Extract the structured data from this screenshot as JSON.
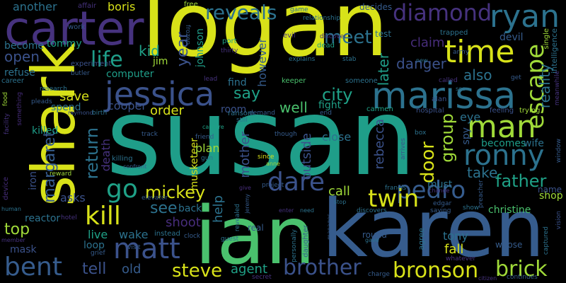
{
  "words": {
    "susan": "susan",
    "logan": "logan",
    "karen": "karen",
    "ian": "ian",
    "shark": "shark",
    "carter": "carter",
    "marissa": "marissa",
    "jessica": "jessica",
    "matt": "matt",
    "time": "time",
    "escape": "escape",
    "ryan": "ryan",
    "diamond": "diamond",
    "man": "man",
    "ronny": "ronny",
    "pedro": "pedro",
    "bronson": "bronson",
    "brick": "brick",
    "twin": "twin",
    "bent": "bent",
    "kill": "kill",
    "dare": "dare",
    "go": "go",
    "brother": "brother",
    "steve": "steve",
    "mickey": "mickey",
    "father": "father",
    "door": "door",
    "group": "group",
    "city": "city",
    "life": "life",
    "return": "return",
    "margaret": "margaret",
    "reveals": "reveals",
    "meet": "meet",
    "another": "another",
    "boris": "boris",
    "open": "open",
    "kid": "kid",
    "jim": "jim",
    "year": "year",
    "johnson": "johnson",
    "say": "say",
    "well": "well",
    "fight": "fight",
    "later": "later",
    "danger": "danger",
    "also": "also",
    "reality": "reality",
    "order": "order",
    "cooper": "cooper",
    "room": "room",
    "find": "find",
    "however": "however",
    "rebecca": "rebecca",
    "outside": "outside",
    "mother": "mother",
    "musketeer": "musketeer",
    "death": "death",
    "killed": "killed",
    "iron": "iron",
    "see": "see",
    "help": "help",
    "shoot": "shoot",
    "plan": "plan",
    "close": "close",
    "call": "call",
    "take": "take",
    "must": "must",
    "shop": "shop",
    "christine": "christine",
    "top": "top",
    "live": "live",
    "wake": "wake",
    "tell": "tell",
    "old": "old",
    "agent": "agent",
    "fall": "fall",
    "tony": "tony",
    "save": "save",
    "spend": "spend",
    "mask": "mask",
    "loop": "loop",
    "tommy": "tommy",
    "become": "become",
    "refuse": "refuse",
    "computer": "computer",
    "claim": "claim",
    "devil": "devil",
    "eye": "eye",
    "spy": "spy",
    "becomes": "becomes",
    "wife": "wife",
    "name": "name",
    "back": "back",
    "asks": "asks",
    "reactor": "reactor",
    "real": "real",
    "round": "round",
    "whose": "whose",
    "work": "work",
    "affair": "affair",
    "free": "free",
    "evil": "evil",
    "test": "test",
    "decides": "decides",
    "frozen": "frozen",
    "port": "port",
    "dead": "dead",
    "trapped": "trapped",
    "army": "army",
    "single": "single",
    "intelligence": "intelligence",
    "experiment": "experiment",
    "butler": "butler",
    "pleads": "pleads",
    "research": "research",
    "career": "career",
    "food": "food",
    "raymond": "raymond",
    "birth": "birth",
    "ransom": "ransom",
    "demand": "demand",
    "still": "still",
    "end": "end",
    "keeper": "keeper",
    "someone": "someone",
    "carmen": "carmen",
    "hospital": "hospital",
    "feeling": "feeling",
    "trying": "trying",
    "alan": "alan",
    "soo": "soo",
    "track": "track",
    "friend": "friend",
    "capture": "capture",
    "though": "though",
    "since": "since",
    "anne": "anne",
    "box": "box",
    "arrives": "arrives",
    "killing": "killing",
    "confront": "confront",
    "gun": "gun",
    "reward": "reward",
    "elevator": "elevator",
    "project": "project",
    "francis": "francis",
    "edgar": "edgar",
    "saying": "saying",
    "show": "show",
    "preacher": "preacher",
    "change": "change",
    "device": "device",
    "human": "human",
    "hotel": "hotel",
    "member": "member",
    "visit": "visit",
    "grief": "grief",
    "instead": "instead",
    "clock": "clock",
    "guest": "guest",
    "revealed": "revealed",
    "personally": "personally",
    "daughter": "daughter",
    "need": "need",
    "stop": "stop",
    "discovers": "discovers",
    "manages": "manages",
    "gave": "gave",
    "charge": "charge",
    "secret": "secret",
    "continues": "continues",
    "citizen": "citizen",
    "whatever": "whatever",
    "captured": "captured",
    "vision": "vision",
    "window": "window",
    "game": "game",
    "relationship": "relationship",
    "discover": "discover",
    "explains": "explains",
    "stab": "stab",
    "thirty": "thirty",
    "lead": "lead",
    "new": "new",
    "called": "called",
    "get": "get",
    "meanwhile": "meanwhile",
    "order2": "order",
    "facility": "facility",
    "something": "something",
    "jeremy": "jeremy",
    "give": "give",
    "enter": "enter",
    "agree": "agree",
    "control": "control",
    "without": "without"
  },
  "palette": {
    "yellow": "#d8e219",
    "lime": "#a0da39",
    "green": "#4ac16d",
    "teal": "#1fa187",
    "cyan": "#1f9e89",
    "blue": "#2c728e",
    "slate": "#365c8d",
    "indigo": "#3b528b",
    "purple": "#46327e",
    "violet": "#472d7b",
    "dark": "#440154",
    "grape": "#481f70"
  }
}
